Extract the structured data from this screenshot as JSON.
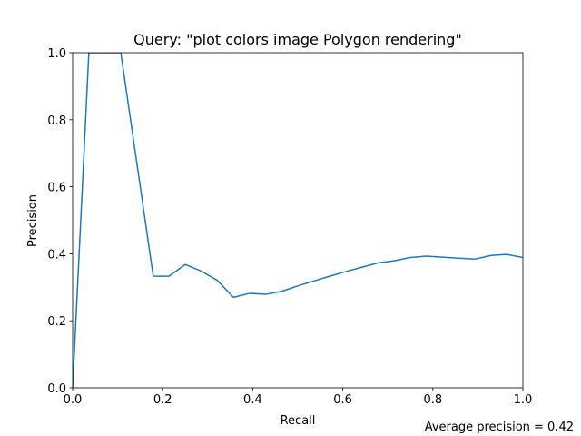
{
  "chart_data": {
    "type": "line",
    "title": "Query: \"plot colors image Polygon rendering\"",
    "xlabel": "Recall",
    "ylabel": "Precision",
    "xlim": [
      0,
      1
    ],
    "ylim": [
      0,
      1
    ],
    "x_ticks": [
      0.0,
      0.2,
      0.4,
      0.6,
      0.8,
      1.0
    ],
    "x_tick_labels": [
      "0.0",
      "0.2",
      "0.4",
      "0.6",
      "0.8",
      "1.0"
    ],
    "y_ticks": [
      0.0,
      0.2,
      0.4,
      0.6,
      0.8,
      1.0
    ],
    "y_tick_labels": [
      "0.0",
      "0.2",
      "0.4",
      "0.6",
      "0.8",
      "1.0"
    ],
    "grid": false,
    "series": [
      {
        "color": "#1f77b4",
        "x": [
          0.0,
          0.036,
          0.071,
          0.107,
          0.143,
          0.179,
          0.214,
          0.25,
          0.286,
          0.321,
          0.357,
          0.393,
          0.429,
          0.464,
          0.5,
          0.536,
          0.571,
          0.607,
          0.643,
          0.679,
          0.714,
          0.75,
          0.786,
          0.821,
          0.857,
          0.893,
          0.929,
          0.964,
          1.0
        ],
        "y": [
          0.0,
          1.0,
          1.0,
          1.0,
          0.667,
          0.333,
          0.333,
          0.368,
          0.348,
          0.321,
          0.27,
          0.282,
          0.279,
          0.288,
          0.304,
          0.319,
          0.333,
          0.347,
          0.36,
          0.373,
          0.379,
          0.389,
          0.393,
          0.39,
          0.387,
          0.384,
          0.395,
          0.398,
          0.389
        ]
      }
    ],
    "annotation": "Average precision = 0.42"
  }
}
